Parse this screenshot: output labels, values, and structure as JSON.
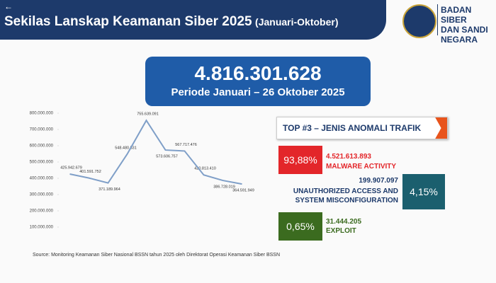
{
  "header": {
    "title": "Sekilas Lanskap Keamanan Siber 2025",
    "subtitle": "(Januari-Oktober)",
    "org": [
      "BADAN SIBER",
      "DAN SANDI",
      "NEGARA"
    ]
  },
  "total": {
    "value": "4.816.301.628",
    "period": "Periode Januari – 26 Oktober 2025"
  },
  "chart_data": {
    "type": "line",
    "categories": [
      null,
      null,
      null,
      null,
      null,
      null,
      null,
      null,
      null,
      null
    ],
    "series": [
      {
        "color": "#7f9fc8",
        "values": [
          425942679,
          401591752,
          371189964,
          548480531,
          755639091,
          573606757,
          567717476,
          420813410,
          386728019,
          364591949
        ],
        "value_labels": [
          "425.942.679",
          "401.591.752",
          "371.189.964",
          "548.480.531",
          "755.639.091",
          "573.606.757",
          "567.717.476",
          "420.813.410",
          "386.728.019",
          "364.591.949"
        ]
      }
    ],
    "ylim": [
      0,
      800000000
    ],
    "yticks": [
      {
        "value": 100000000,
        "label": "100.000.000"
      },
      {
        "value": 200000000,
        "label": "200.000.000"
      },
      {
        "value": 300000000,
        "label": "300.000.000"
      },
      {
        "value": 400000000,
        "label": "400.000.000"
      },
      {
        "value": 500000000,
        "label": "500.000.000"
      },
      {
        "value": 600000000,
        "label": "600.000.000"
      },
      {
        "value": 700000000,
        "label": "700.000.000"
      },
      {
        "value": 800000000,
        "label": "800.000.000"
      }
    ],
    "grid": false
  },
  "anomali": {
    "title": "TOP #3 – JENIS ANOMALI TRAFIK",
    "items": [
      {
        "percent": "93,88%",
        "count": "4.521.613.893",
        "label": "MALWARE ACTIVITY"
      },
      {
        "percent": "4,15%",
        "count": "199.907.097",
        "label": "UNAUTHORIZED ACCESS AND SYSTEM MISCONFIGURATION"
      },
      {
        "percent": "0,65%",
        "count": "31.444.205",
        "label": "EXPLOIT"
      }
    ]
  },
  "source": "Source: Monitoring Keamanan Siber Nasional BSSN tahun 2025 oleh Direktorat Operasi Keamanan Siber BSSN"
}
